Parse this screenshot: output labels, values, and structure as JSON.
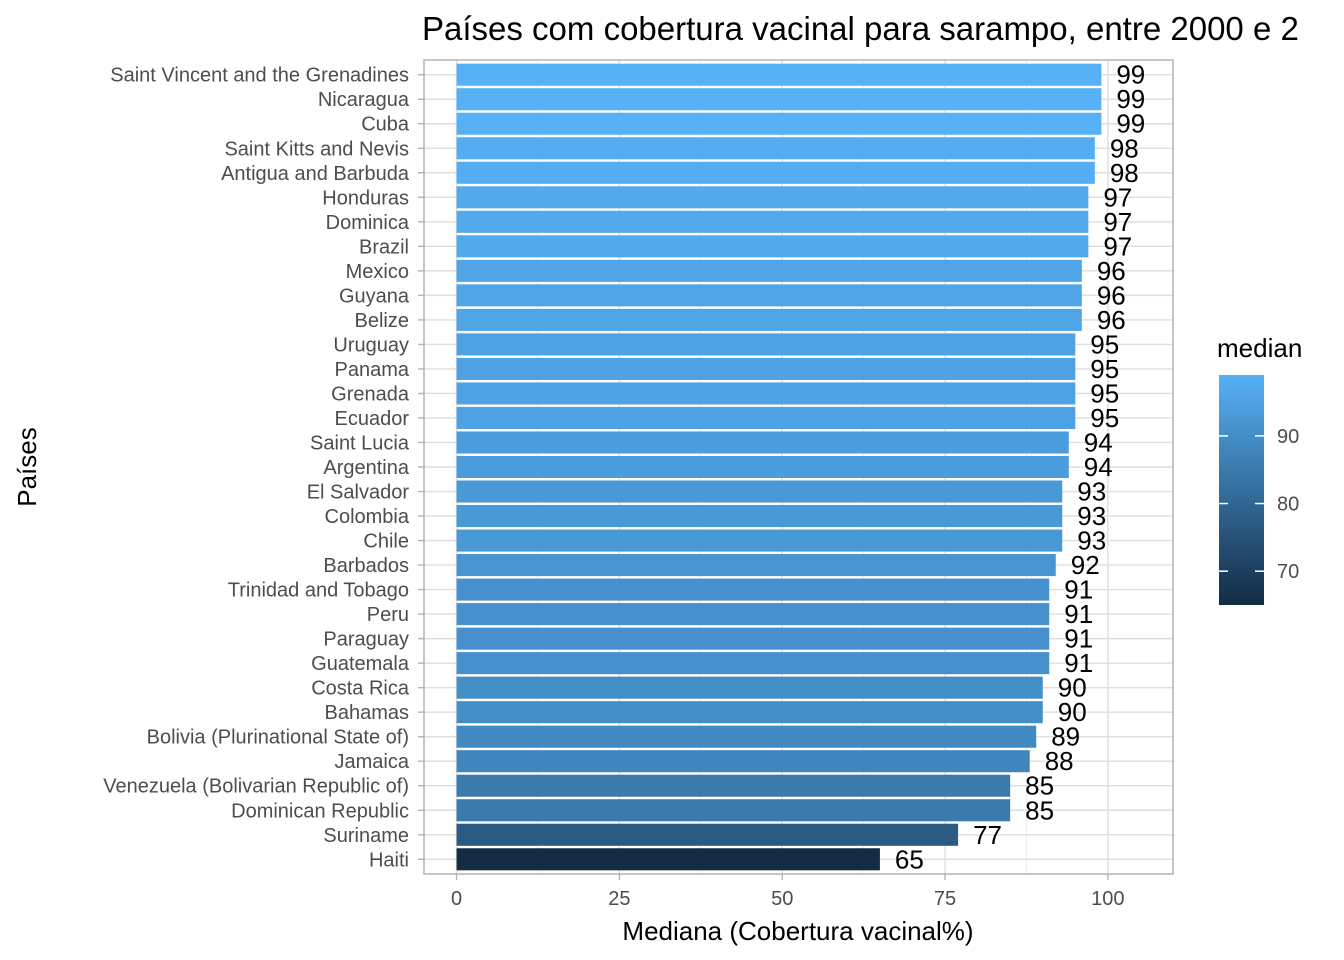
{
  "chart_data": {
    "type": "bar",
    "orientation": "horizontal",
    "title": "Países com cobertura vacinal para sarampo, entre 2000 e 2",
    "xlabel": "Mediana (Cobertura vacinal%)",
    "ylabel": "Países",
    "xlim": [
      -5,
      110
    ],
    "xticks": [
      0,
      25,
      50,
      75,
      100
    ],
    "grid": true,
    "categories": [
      "Saint Vincent and the Grenadines",
      "Nicaragua",
      "Cuba",
      "Saint Kitts and Nevis",
      "Antigua and Barbuda",
      "Honduras",
      "Dominica",
      "Brazil",
      "Mexico",
      "Guyana",
      "Belize",
      "Uruguay",
      "Panama",
      "Grenada",
      "Ecuador",
      "Saint Lucia",
      "Argentina",
      "El Salvador",
      "Colombia",
      "Chile",
      "Barbados",
      "Trinidad and Tobago",
      "Peru",
      "Paraguay",
      "Guatemala",
      "Costa Rica",
      "Bahamas",
      "Bolivia (Plurinational State of)",
      "Jamaica",
      "Venezuela (Bolivarian Republic of)",
      "Dominican Republic",
      "Suriname",
      "Haiti"
    ],
    "values": [
      99,
      99,
      99,
      98,
      98,
      97,
      97,
      97,
      96,
      96,
      96,
      95,
      95,
      95,
      95,
      94,
      94,
      93,
      93,
      93,
      92,
      91,
      91,
      91,
      91,
      90,
      90,
      89,
      88,
      85,
      85,
      77,
      65
    ],
    "legend": {
      "title": "median",
      "position": "right",
      "type": "colorbar",
      "ticks": [
        70,
        80,
        90
      ],
      "range": [
        65,
        99
      ],
      "color_low": "#132b43",
      "color_high": "#56b1f7"
    }
  }
}
